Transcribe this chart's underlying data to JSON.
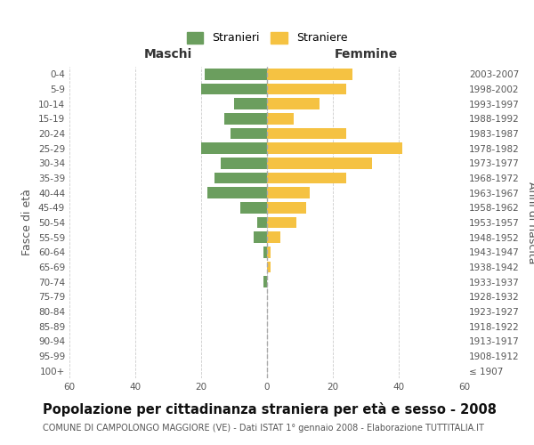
{
  "age_groups": [
    "100+",
    "95-99",
    "90-94",
    "85-89",
    "80-84",
    "75-79",
    "70-74",
    "65-69",
    "60-64",
    "55-59",
    "50-54",
    "45-49",
    "40-44",
    "35-39",
    "30-34",
    "25-29",
    "20-24",
    "15-19",
    "10-14",
    "5-9",
    "0-4"
  ],
  "birth_years": [
    "≤ 1907",
    "1908-1912",
    "1913-1917",
    "1918-1922",
    "1923-1927",
    "1928-1932",
    "1933-1937",
    "1938-1942",
    "1943-1947",
    "1948-1952",
    "1953-1957",
    "1958-1962",
    "1963-1967",
    "1968-1972",
    "1973-1977",
    "1978-1982",
    "1983-1987",
    "1988-1992",
    "1993-1997",
    "1998-2002",
    "2003-2007"
  ],
  "males": [
    0,
    0,
    0,
    0,
    0,
    0,
    1,
    0,
    1,
    4,
    3,
    8,
    18,
    16,
    14,
    20,
    11,
    13,
    10,
    20,
    19
  ],
  "females": [
    0,
    0,
    0,
    0,
    0,
    0,
    0,
    1,
    1,
    4,
    9,
    12,
    13,
    24,
    32,
    41,
    24,
    8,
    16,
    24,
    26
  ],
  "male_color": "#6b9e5e",
  "female_color": "#f5c242",
  "background_color": "#ffffff",
  "grid_color": "#cccccc",
  "title": "Popolazione per cittadinanza straniera per età e sesso - 2008",
  "subtitle": "COMUNE DI CAMPOLONGO MAGGIORE (VE) - Dati ISTAT 1° gennaio 2008 - Elaborazione TUTTITALIA.IT",
  "xlabel_left": "Maschi",
  "xlabel_right": "Femmine",
  "ylabel_left": "Fasce di età",
  "ylabel_right": "Anni di nascita",
  "legend_male": "Stranieri",
  "legend_female": "Straniere",
  "xlim": 60,
  "title_fontsize": 10.5,
  "subtitle_fontsize": 7.0,
  "tick_fontsize": 7.5,
  "label_fontsize": 9
}
